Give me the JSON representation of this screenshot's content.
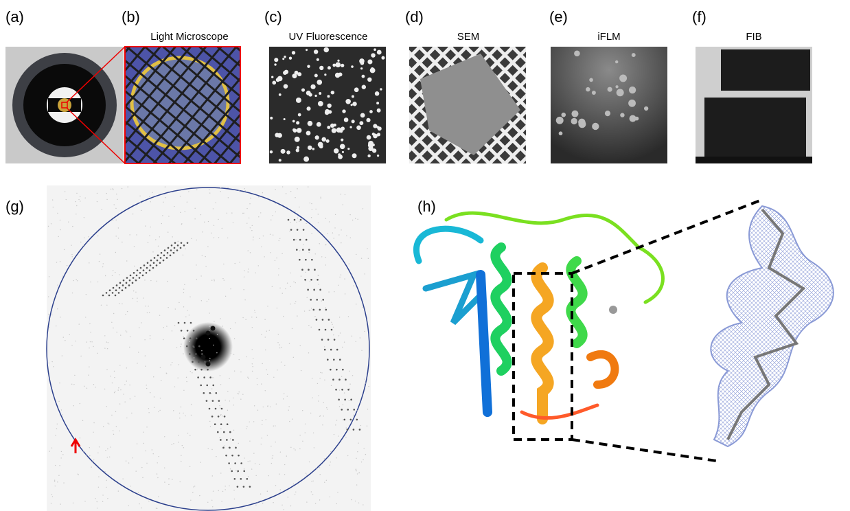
{
  "panels": [
    {
      "label": "(a)"
    },
    {
      "label": "(b)",
      "title": "Light Microscope"
    },
    {
      "label": "(c)",
      "title": "UV Fluorescence"
    },
    {
      "label": "(d)",
      "title": "SEM"
    },
    {
      "label": "(e)",
      "title": "iFLM"
    },
    {
      "label": "(f)",
      "title": "FIB"
    },
    {
      "label": "(g)"
    },
    {
      "label": "(h)"
    }
  ]
}
